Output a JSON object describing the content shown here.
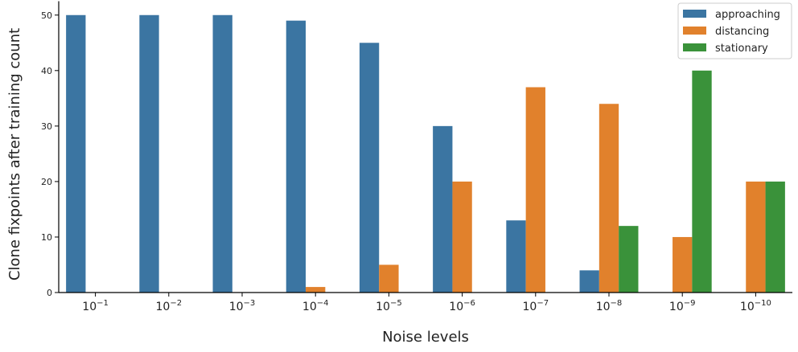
{
  "chart_data": {
    "type": "bar",
    "title": "",
    "xlabel": "Noise levels",
    "ylabel": "Clone fixpoints after training count",
    "categories": [
      "10^-1",
      "10^-2",
      "10^-3",
      "10^-4",
      "10^-5",
      "10^-6",
      "10^-7",
      "10^-8",
      "10^-9",
      "10^-10"
    ],
    "category_base": "10",
    "category_exponents": [
      "−1",
      "−2",
      "−3",
      "−4",
      "−5",
      "−6",
      "−7",
      "−8",
      "−9",
      "−10"
    ],
    "series": [
      {
        "name": "approaching",
        "color": "#3b75a2",
        "values": [
          50,
          50,
          50,
          49,
          45,
          30,
          13,
          4,
          0,
          0
        ]
      },
      {
        "name": "distancing",
        "color": "#e1812c",
        "values": [
          0,
          0,
          0,
          1,
          5,
          20,
          37,
          34,
          10,
          20
        ]
      },
      {
        "name": "stationary",
        "color": "#3a923a",
        "values": [
          0,
          0,
          0,
          0,
          0,
          0,
          0,
          12,
          40,
          20
        ]
      }
    ],
    "ylim": [
      0,
      52.5
    ],
    "yticks": [
      0,
      10,
      20,
      30,
      40,
      50
    ],
    "grid": false,
    "legend_position": "top-right"
  }
}
